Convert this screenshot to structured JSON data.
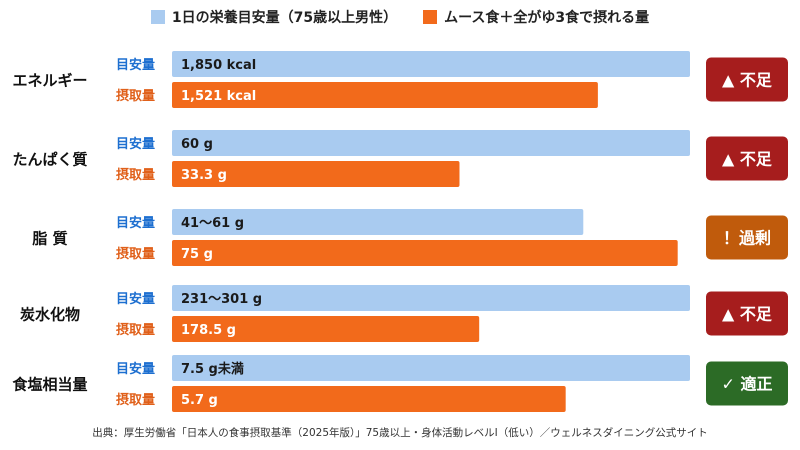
{
  "legend": {
    "recommended": "1日の栄養目安量（75歳以上男性）",
    "intake": "ムース食＋全がゆ3食で摂れる量"
  },
  "colors": {
    "recommended": "#a9cbf0",
    "intake": "#f26a1b",
    "row_label_recommended": "#1d6fd0",
    "row_label_intake": "#e0601a",
    "status_under": "#a61d1d",
    "status_over": "#c05b0c",
    "status_ok": "#2c6b26"
  },
  "source": "出典：厚生労働省「日本人の食事摂取基準（2025年版）」75歳以上・身体活動レベルⅠ（低い）／ウェルネスダイニング公式サイト",
  "chart_data": {
    "type": "bar",
    "orientation": "horizontal",
    "categories": [
      "エネルギー",
      "たんぱく質",
      "脂 質",
      "炭水化物",
      "食塩相当量"
    ],
    "row_labels": [
      "目安量",
      "摂取量"
    ],
    "series": [
      {
        "name": "1日の栄養目安量（75歳以上男性）",
        "values": [
          1850,
          60,
          61,
          301,
          7.5
        ],
        "labels": [
          "1,850 kcal",
          "60 g",
          "41～61 g",
          "231～301 g",
          "7.5 g未満"
        ],
        "ranges": [
          null,
          null,
          [
            41,
            61
          ],
          [
            231,
            301
          ],
          null
        ]
      },
      {
        "name": "ムース食＋全がゆ3食で摂れる量",
        "values": [
          1521,
          33.3,
          75,
          178.5,
          5.7
        ],
        "labels": [
          "1,521 kcal",
          "33.3 g",
          "75 g",
          "178.5 g",
          "5.7 g"
        ]
      }
    ],
    "status": [
      {
        "text": "▲ 不足",
        "type": "under"
      },
      {
        "text": "▲ 不足",
        "type": "under"
      },
      {
        "text": "！過剰",
        "type": "over"
      },
      {
        "text": "▲ 不足",
        "type": "under"
      },
      {
        "text": "✓ 適正",
        "type": "ok"
      }
    ],
    "full_scale_fraction_of_recommended_bar": [
      1.0,
      1.0,
      0.794,
      1.0,
      1.0
    ]
  }
}
